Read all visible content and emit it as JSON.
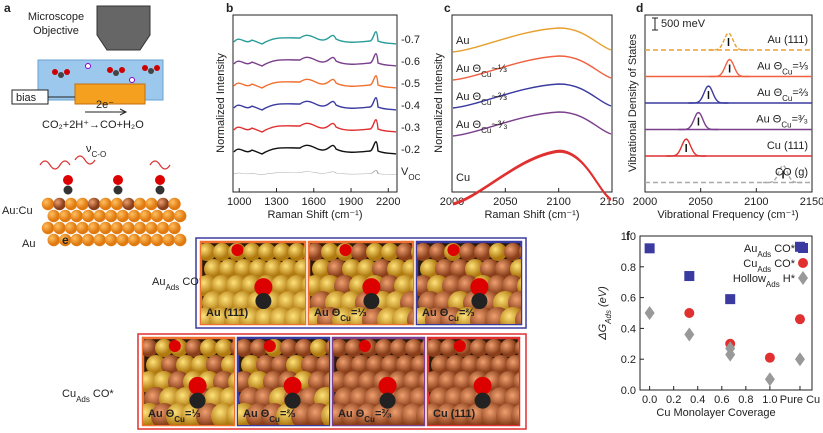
{
  "panels": {
    "a": {
      "label": "a",
      "objective_1": "Microscope",
      "objective_2": "Objective",
      "bias": "bias",
      "electrons": "2e⁻",
      "reaction": "CO₂+2H⁺→CO+H₂O",
      "vco": {
        "text": "ν",
        "sub": "C-O"
      },
      "layer_top": "Au:Cu",
      "layer_bottom": "Au"
    },
    "b": {
      "label": "b",
      "xlabel": "Raman Shift (cm⁻¹)",
      "ylabel": "Normalized Intensity",
      "xlim": [
        950,
        2270
      ],
      "xticks": [
        1000,
        1300,
        1600,
        1900,
        2200
      ],
      "traces": [
        {
          "label": {
            "text": "-0.7"
          },
          "color": "#2a9d9a"
        },
        {
          "label": {
            "text": "-0.6"
          },
          "color": "#7b3f8c"
        },
        {
          "label": {
            "text": "-0.5"
          },
          "color": "#f07030"
        },
        {
          "label": {
            "text": "-0.4"
          },
          "color": "#3a3aa0"
        },
        {
          "label": {
            "text": "-0.3"
          },
          "color": "#e03030"
        },
        {
          "label": {
            "text": "-0.2"
          },
          "color": "#111111"
        },
        {
          "label": {
            "text": "V",
            "sub": "OC"
          },
          "color": "#aaaaaa"
        }
      ]
    },
    "c": {
      "label": "c",
      "xlabel": "Raman Shift (cm⁻¹)",
      "ylabel": "Normalized Intensity",
      "xlim": [
        2000,
        2150
      ],
      "xticks": [
        2000,
        2050,
        2100,
        2150
      ],
      "traces": [
        {
          "label": {
            "text": "Au"
          },
          "color": "#e8a030"
        },
        {
          "label": {
            "text": "Au Θ",
            "sub": "Cu",
            "tail": "~⅓"
          },
          "color": "#f06040"
        },
        {
          "label": {
            "text": "Au Θ",
            "sub": "Cu",
            "tail": "~⅔"
          },
          "color": "#3a3aa0"
        },
        {
          "label": {
            "text": "Au Θ",
            "sub": "Cu",
            "tail": "~³⁄₃"
          },
          "color": "#7b3f8c"
        },
        {
          "label": {
            "text": "Cu"
          },
          "color": "#e03030"
        }
      ]
    },
    "d": {
      "label": "d",
      "xlabel": "Vibrational Frequency (cm⁻¹)",
      "ylabel": "Vibrational Density of States",
      "scale_bar": "500 meV",
      "xlim": [
        2000,
        2150
      ],
      "xticks": [
        2000,
        2050,
        2100,
        2150
      ],
      "traces": [
        {
          "label": {
            "text": "Au (111)"
          },
          "color": "#e8a030",
          "peak": 2075,
          "dashed": true
        },
        {
          "label": {
            "text": "Au Θ",
            "sub": "Cu",
            "tail": "=⅓"
          },
          "color": "#f06040",
          "peak": 2076,
          "dashed": false
        },
        {
          "label": {
            "text": "Au Θ",
            "sub": "Cu",
            "tail": "=⅔"
          },
          "color": "#3a3aa0",
          "peak": 2057,
          "dashed": false
        },
        {
          "label": {
            "text": "Au Θ",
            "sub": "Cu",
            "tail": "=³⁄₃"
          },
          "color": "#7b3f8c",
          "peak": 2048,
          "dashed": false
        },
        {
          "label": {
            "text": "Cu (111)"
          },
          "color": "#e03030",
          "peak": 2037,
          "dashed": false
        },
        {
          "label": {
            "text": "CO (g)"
          },
          "color": "#aaaaaa",
          "peak": 2124,
          "dashed": true
        }
      ]
    },
    "e": {
      "label": "e",
      "row_top": {
        "text": "Au",
        "sub": "Ads",
        "tail": " CO*"
      },
      "row_bottom": {
        "text": "Cu",
        "sub": "Ads",
        "tail": " CO*"
      },
      "top": [
        {
          "label": {
            "text": "Au (111)"
          },
          "color": "#f07030"
        },
        {
          "label": {
            "text": "Au Θ",
            "sub": "Cu",
            "tail": "=⅓"
          },
          "color": "#f07030"
        },
        {
          "label": {
            "text": "Au Θ",
            "sub": "Cu",
            "tail": "=⅔"
          },
          "color": "#3a3aa0"
        }
      ],
      "bottom": [
        {
          "label": {
            "text": "Au Θ",
            "sub": "Cu",
            "tail": "=⅓"
          },
          "color": "#f07030"
        },
        {
          "label": {
            "text": "Au Θ",
            "sub": "Cu",
            "tail": "=⅔"
          },
          "color": "#3a3aa0"
        },
        {
          "label": {
            "text": "Au Θ",
            "sub": "Cu",
            "tail": "=³⁄₃"
          },
          "color": "#7b3f8c"
        },
        {
          "label": {
            "text": "Cu (111)"
          },
          "color": "#e03030"
        }
      ]
    },
    "f": {
      "label": "f",
      "xlabel": "Cu Monolayer Coverage",
      "ylabel": {
        "text": "ΔG",
        "sub": "Ads",
        "tail": " (eV)"
      },
      "xlim": [
        -0.08,
        1.35
      ],
      "ylim": [
        0,
        1.0
      ],
      "xticks": [
        {
          "value": 0,
          "label": "0.0"
        },
        0.2,
        0.4,
        0.6,
        0.8,
        {
          "value": 1,
          "label": "1.0"
        },
        {
          "value": 1.25,
          "label": "Pure Cu",
          "color": "#e03030"
        }
      ],
      "yticks": [
        {
          "value": 0,
          "label": "0.0"
        },
        0.2,
        0.4,
        0.6,
        0.8,
        {
          "value": 1,
          "label": "1.0"
        }
      ],
      "series": [
        {
          "name": {
            "text": "Au",
            "sub": "Ads",
            "tail": " CO*"
          },
          "color": "#3a3aa0",
          "marker": "square",
          "x": [
            0,
            0.33,
            0.67,
            1.25
          ],
          "y": [
            0.92,
            0.74,
            0.59,
            0.93
          ]
        },
        {
          "name": {
            "text": "Cu",
            "sub": "Ads",
            "tail": " CO*"
          },
          "color": "#e03030",
          "marker": "circle",
          "x": [
            0.33,
            0.67,
            1.0,
            1.25
          ],
          "y": [
            0.5,
            0.3,
            0.21,
            0.46
          ]
        },
        {
          "name": {
            "text": "Hollow",
            "sub": "Ads",
            "tail": " H*"
          },
          "color": "#999999",
          "marker": "diamond",
          "x": [
            0,
            0.33,
            0.67,
            0.67,
            1.0,
            1.25
          ],
          "y": [
            0.5,
            0.36,
            0.27,
            0.23,
            0.07,
            0.2
          ]
        }
      ]
    }
  }
}
